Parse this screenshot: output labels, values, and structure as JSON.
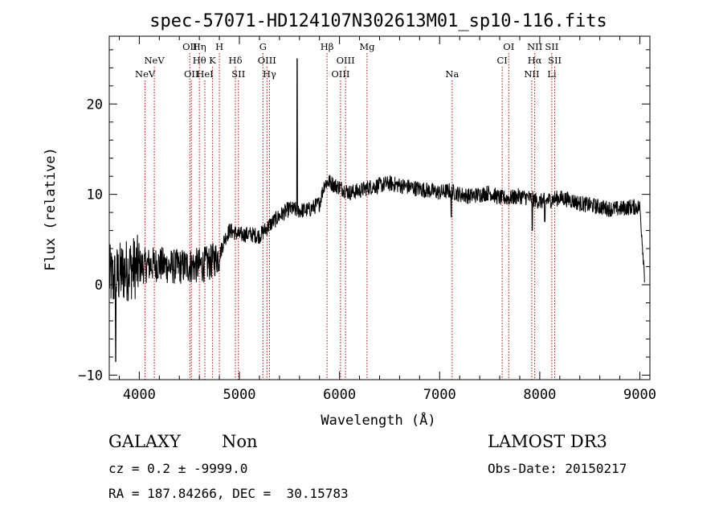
{
  "chart_data": {
    "type": "line",
    "title": "spec-57071-HD124107N302613M01_sp10-116.fits",
    "xlabel": "Wavelength (Å)",
    "ylabel": "Flux (relative)",
    "xlim": [
      3700,
      9100
    ],
    "ylim": [
      -10.5,
      27.5
    ],
    "x_ticks": [
      4000,
      5000,
      6000,
      7000,
      8000,
      9000
    ],
    "y_ticks": [
      -10,
      0,
      10,
      20
    ],
    "grid": false,
    "line_color": "#000000",
    "marker_color": "#c00000",
    "lines": [
      {
        "x": 4058,
        "labels": [
          "NeV"
        ],
        "rows": [
          3
        ]
      },
      {
        "x": 4150,
        "labels": [
          "NeV"
        ],
        "rows": [
          2
        ]
      },
      {
        "x": 4505,
        "labels": [
          "OII"
        ],
        "rows": [
          1
        ]
      },
      {
        "x": 4520,
        "labels": [
          "OII"
        ],
        "rows": [
          3
        ]
      },
      {
        "x": 4600,
        "labels": [
          "Hη",
          "Hθ"
        ],
        "rows": [
          1,
          2
        ]
      },
      {
        "x": 4655,
        "labels": [
          "HeI"
        ],
        "rows": [
          3
        ]
      },
      {
        "x": 4730,
        "labels": [
          "K"
        ],
        "rows": [
          2
        ]
      },
      {
        "x": 4800,
        "labels": [
          "H"
        ],
        "rows": [
          1
        ]
      },
      {
        "x": 4960,
        "labels": [
          "Hδ"
        ],
        "rows": [
          2
        ]
      },
      {
        "x": 4990,
        "labels": [
          "SII"
        ],
        "rows": [
          3
        ]
      },
      {
        "x": 5235,
        "labels": [
          "G"
        ],
        "rows": [
          1
        ]
      },
      {
        "x": 5275,
        "labels": [
          "OIII"
        ],
        "rows": [
          2
        ]
      },
      {
        "x": 5300,
        "labels": [
          "Hγ"
        ],
        "rows": [
          3
        ]
      },
      {
        "x": 5875,
        "labels": [
          "Hβ"
        ],
        "rows": [
          1
        ]
      },
      {
        "x": 6010,
        "labels": [
          "OIII"
        ],
        "rows": [
          3
        ]
      },
      {
        "x": 6060,
        "labels": [
          "OIII"
        ],
        "rows": [
          2
        ]
      },
      {
        "x": 6275,
        "labels": [
          "Mg"
        ],
        "rows": [
          1
        ]
      },
      {
        "x": 7125,
        "labels": [
          "Na"
        ],
        "rows": [
          3
        ]
      },
      {
        "x": 7625,
        "labels": [
          "CI"
        ],
        "rows": [
          2
        ]
      },
      {
        "x": 7690,
        "labels": [
          "OI"
        ],
        "rows": [
          1
        ]
      },
      {
        "x": 7920,
        "labels": [
          "NII"
        ],
        "rows": [
          3
        ]
      },
      {
        "x": 7950,
        "labels": [
          "NII",
          "Hα"
        ],
        "rows": [
          1,
          2
        ]
      },
      {
        "x": 8120,
        "labels": [
          "SII",
          "Li"
        ],
        "rows": [
          1,
          3
        ]
      },
      {
        "x": 8150,
        "labels": [
          "SII"
        ],
        "rows": [
          2
        ]
      }
    ],
    "spectrum_anchors": [
      [
        3700,
        1.0
      ],
      [
        3750,
        0.5
      ],
      [
        3800,
        1.2
      ],
      [
        3900,
        1.8
      ],
      [
        4000,
        2.0
      ],
      [
        4100,
        2.2
      ],
      [
        4200,
        2.3
      ],
      [
        4300,
        2.0
      ],
      [
        4400,
        2.0
      ],
      [
        4500,
        2.1
      ],
      [
        4600,
        2.1
      ],
      [
        4700,
        2.4
      ],
      [
        4800,
        3.2
      ],
      [
        4850,
        5.0
      ],
      [
        4900,
        6.0
      ],
      [
        4950,
        5.8
      ],
      [
        5000,
        5.5
      ],
      [
        5100,
        5.6
      ],
      [
        5200,
        5.4
      ],
      [
        5300,
        6.6
      ],
      [
        5400,
        7.6
      ],
      [
        5500,
        8.4
      ],
      [
        5600,
        8.2
      ],
      [
        5700,
        8.3
      ],
      [
        5800,
        9.0
      ],
      [
        5850,
        11.2
      ],
      [
        5900,
        11.4
      ],
      [
        5950,
        11.0
      ],
      [
        6000,
        10.8
      ],
      [
        6100,
        10.2
      ],
      [
        6200,
        10.4
      ],
      [
        6300,
        10.8
      ],
      [
        6400,
        11.0
      ],
      [
        6500,
        11.2
      ],
      [
        6600,
        11.0
      ],
      [
        6700,
        10.8
      ],
      [
        6800,
        10.6
      ],
      [
        6900,
        10.4
      ],
      [
        7000,
        10.2
      ],
      [
        7100,
        10.4
      ],
      [
        7200,
        10.0
      ],
      [
        7300,
        9.8
      ],
      [
        7400,
        10.0
      ],
      [
        7500,
        10.2
      ],
      [
        7600,
        9.6
      ],
      [
        7700,
        9.6
      ],
      [
        7800,
        9.8
      ],
      [
        7900,
        9.6
      ],
      [
        8000,
        9.2
      ],
      [
        8100,
        9.4
      ],
      [
        8200,
        9.6
      ],
      [
        8300,
        9.4
      ],
      [
        8400,
        9.0
      ],
      [
        8500,
        8.8
      ],
      [
        8600,
        8.6
      ],
      [
        8700,
        8.4
      ],
      [
        8800,
        8.4
      ],
      [
        8900,
        8.6
      ],
      [
        9000,
        8.6
      ],
      [
        9050,
        0.5
      ]
    ],
    "spectrum_features": [
      {
        "x": 5577,
        "peak": 25.0,
        "note": "sky emission line"
      },
      {
        "x": 3765,
        "dip": -8.5
      },
      {
        "x": 7115,
        "dip": 7.5
      },
      {
        "x": 7925,
        "dip": 6.0
      },
      {
        "x": 8050,
        "dip": 7.0
      }
    ]
  },
  "info": {
    "object_class": "GALAXY",
    "subclass": "Non",
    "redshift_line": "cz = 0.2 ± -9999.0",
    "coords_line": "RA = 187.84266, DEC =  30.15783",
    "survey": "LAMOST DR3",
    "obs_date": "Obs-Date: 20150217"
  }
}
